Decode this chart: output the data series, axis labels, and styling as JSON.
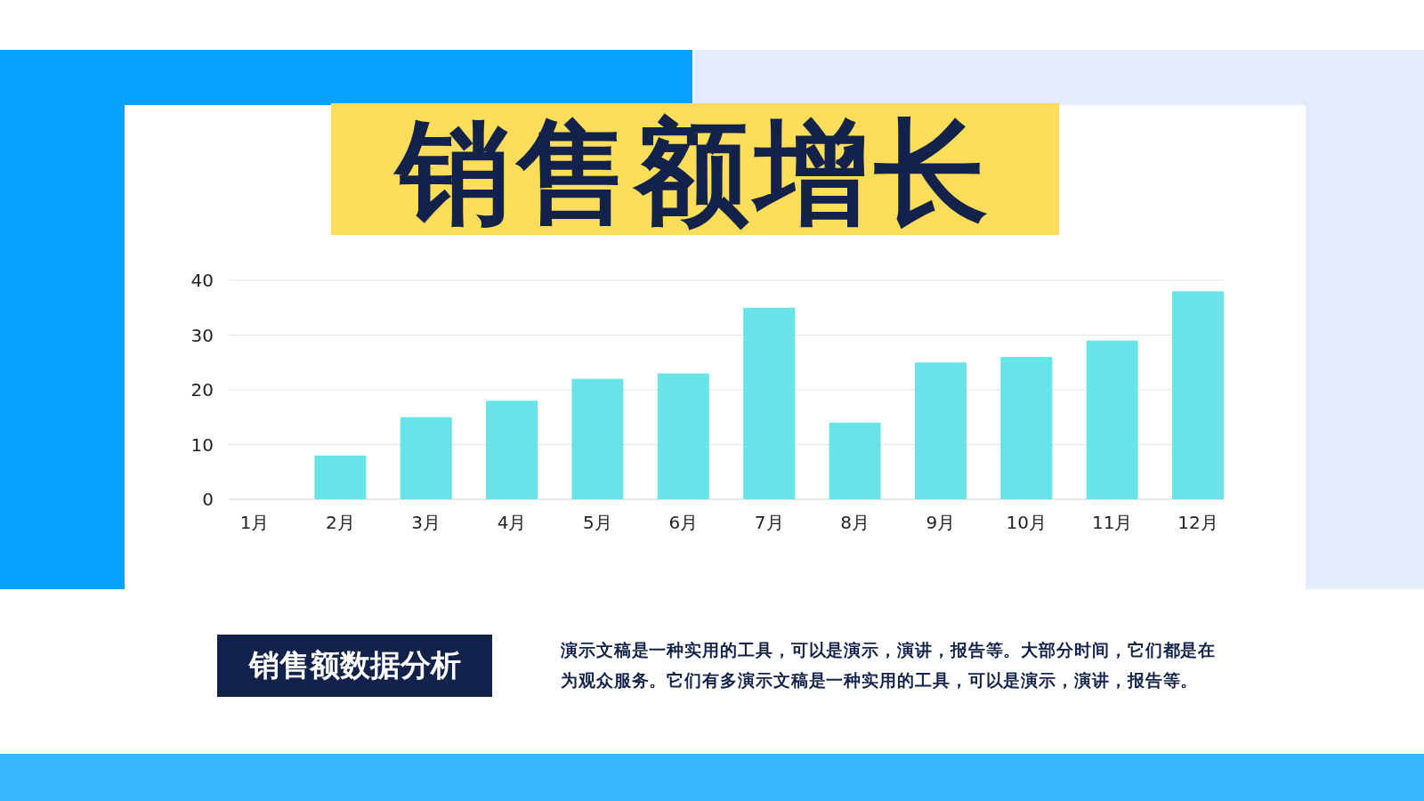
{
  "chart_data": {
    "type": "bar",
    "title": "销售额增长",
    "categories": [
      "1月",
      "2月",
      "3月",
      "4月",
      "5月",
      "6月",
      "7月",
      "8月",
      "9月",
      "10月",
      "11月",
      "12月"
    ],
    "values": [
      0,
      8,
      15,
      18,
      22,
      23,
      35,
      14,
      25,
      26,
      29,
      38
    ],
    "color": "#68e3e8",
    "ylim": [
      0,
      40
    ],
    "yticks": [
      0,
      10,
      20,
      30,
      40
    ],
    "grid": "y",
    "annotations": [
      "销售额数据分析",
      "演示文稿是一种实用的工具，可以是演示，演讲，报告等。大部分时间，它们都是在为观众服务。它们有多演示文稿是一种实用的工具，可以是演示，演讲，报告等。"
    ]
  }
}
